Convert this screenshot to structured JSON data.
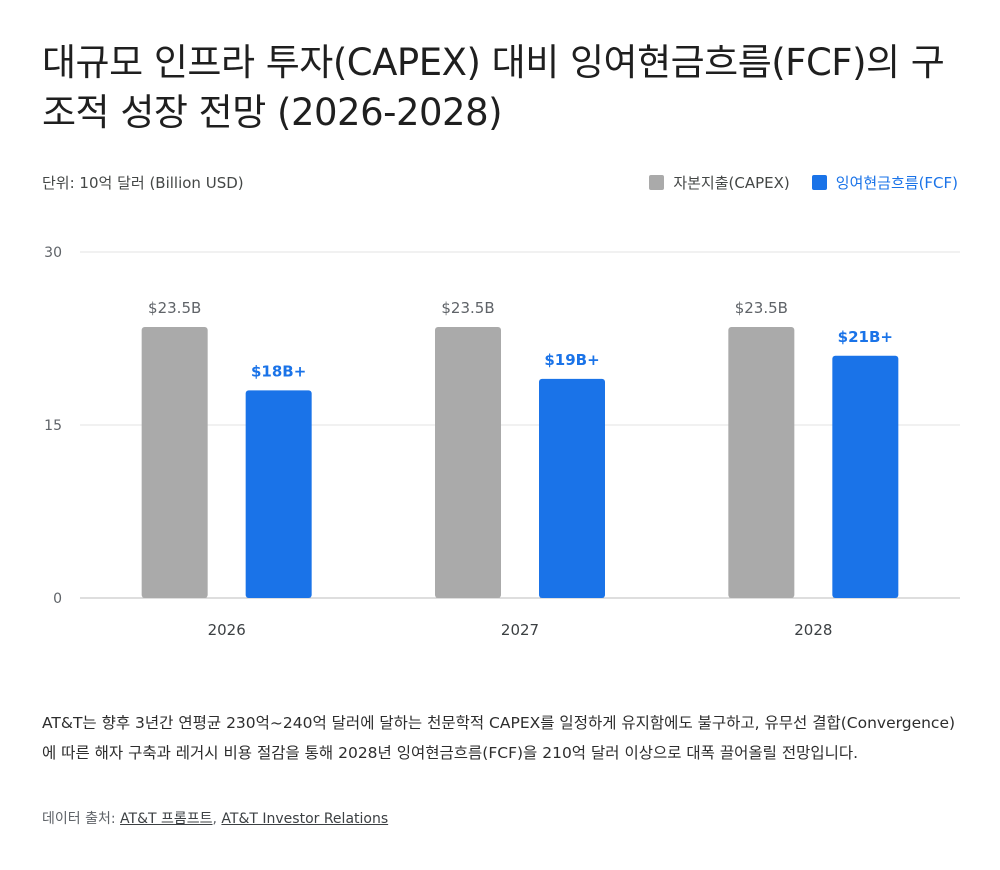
{
  "title": "대규모 인프라 투자(CAPEX) 대비 잉여현금흐름(FCF)의 구조적 성장 전망 (2026-2028)",
  "unit_label": "단위: 10억 달러 (Billion USD)",
  "colors": {
    "capex": "#aaaaaa",
    "fcf": "#1a73e8",
    "grid": "#e3e3e3",
    "axis": "#bdbdbd"
  },
  "chart_data": {
    "type": "bar",
    "categories": [
      "2026",
      "2027",
      "2028"
    ],
    "series": [
      {
        "name": "자본지출(CAPEX)",
        "values": [
          23.5,
          23.5,
          23.5
        ],
        "labels": [
          "$23.5B",
          "$23.5B",
          "$23.5B"
        ]
      },
      {
        "name": "잉여현금흐름(FCF)",
        "values": [
          18,
          19,
          21
        ],
        "labels": [
          "$18B+",
          "$19B+",
          "$21B+"
        ]
      }
    ],
    "yticks": [
      0,
      15,
      30
    ],
    "ylim": [
      0,
      30
    ],
    "grid": true,
    "legend": "top-right"
  },
  "description": "AT&T는 향후 3년간 연평균 230억~240억 달러에 달하는 천문학적 CAPEX를 일정하게 유지함에도 불구하고, 유무선 결합(Convergence)에 따른 해자 구축과 레거시 비용 절감을 통해 2028년 잉여현금흐름(FCF)을 210억 달러 이상으로 대폭 끌어올릴 전망입니다.",
  "source": {
    "prefix": "데이터 출처: ",
    "links": [
      "AT&T 프롬프트",
      "AT&T Investor Relations"
    ],
    "separator": ", "
  }
}
